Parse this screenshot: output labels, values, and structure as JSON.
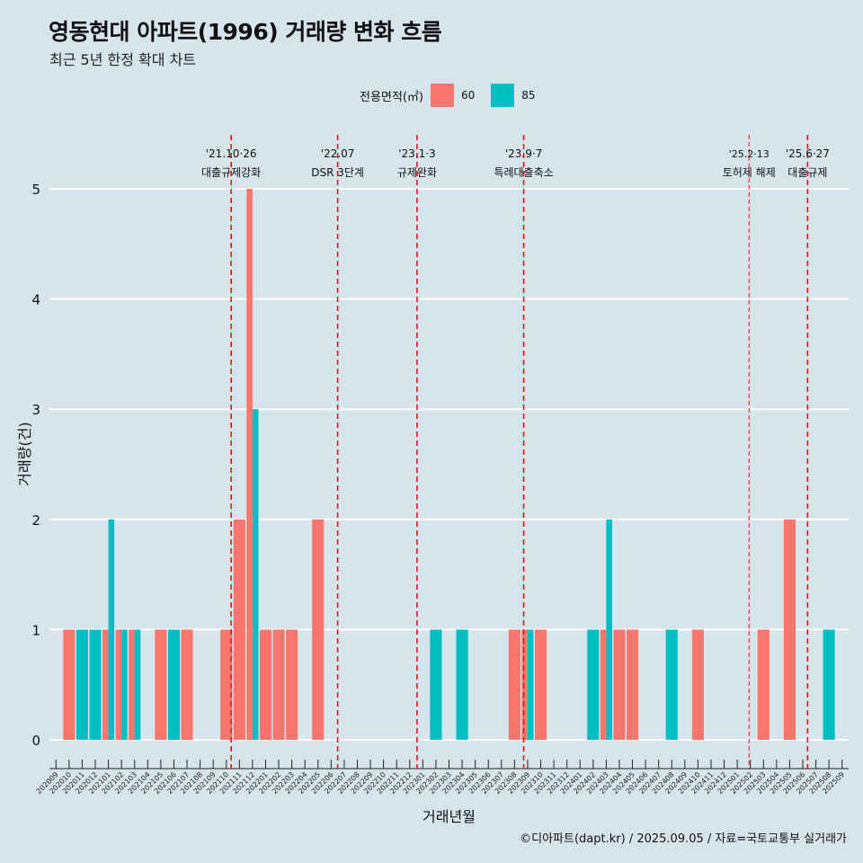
{
  "title": "영동현대 아파트(1996) 거래량 변화 흐름",
  "subtitle": "최근 5년 한정 확대 차트",
  "legend": {
    "title": "전용면적(㎡)",
    "items": [
      {
        "label": "60",
        "color": "#f8766d"
      },
      {
        "label": "85",
        "color": "#00bfc4"
      }
    ]
  },
  "caption": "©디아파트(dapt.kr) / 2025.09.05 / 자료=국토교통부 실거래가",
  "chart_data": {
    "type": "bar",
    "xlabel": "거래년월",
    "ylabel": "거래량(건)",
    "ylim": [
      0,
      5
    ],
    "yticks": [
      0,
      1,
      2,
      3,
      4,
      5
    ],
    "grid": "horizontal",
    "legend_position": "top",
    "categories": [
      "202009",
      "202010",
      "202011",
      "202012",
      "202101",
      "202102",
      "202103",
      "202104",
      "202105",
      "202106",
      "202107",
      "202108",
      "202109",
      "202110",
      "202111",
      "202112",
      "202201",
      "202202",
      "202203",
      "202204",
      "202205",
      "202206",
      "202207",
      "202208",
      "202209",
      "202210",
      "202211",
      "202212",
      "202301",
      "202302",
      "202303",
      "202304",
      "202305",
      "202306",
      "202307",
      "202308",
      "202309",
      "202310",
      "202311",
      "202312",
      "202401",
      "202402",
      "202403",
      "202404",
      "202405",
      "202406",
      "202407",
      "202408",
      "202409",
      "202410",
      "202411",
      "202412",
      "202501",
      "202502",
      "202503",
      "202504",
      "202505",
      "202506",
      "202507",
      "202508",
      "202509"
    ],
    "series": [
      {
        "name": "60",
        "color": "#f8766d",
        "points": [
          [
            "202010",
            1
          ],
          [
            "202101",
            1
          ],
          [
            "202102",
            1
          ],
          [
            "202103",
            1
          ],
          [
            "202105",
            1
          ],
          [
            "202107",
            1
          ],
          [
            "202110",
            1
          ],
          [
            "202111",
            2
          ],
          [
            "202112",
            5
          ],
          [
            "202201",
            1
          ],
          [
            "202202",
            1
          ],
          [
            "202203",
            1
          ],
          [
            "202205",
            2
          ],
          [
            "202308",
            1
          ],
          [
            "202309",
            1
          ],
          [
            "202310",
            1
          ],
          [
            "202403",
            1
          ],
          [
            "202404",
            1
          ],
          [
            "202405",
            1
          ],
          [
            "202410",
            1
          ],
          [
            "202503",
            1
          ],
          [
            "202505",
            2
          ]
        ]
      },
      {
        "name": "85",
        "color": "#00bfc4",
        "points": [
          [
            "202011",
            1
          ],
          [
            "202012",
            1
          ],
          [
            "202101",
            2
          ],
          [
            "202102",
            1
          ],
          [
            "202103",
            1
          ],
          [
            "202106",
            1
          ],
          [
            "202112",
            3
          ],
          [
            "202302",
            1
          ],
          [
            "202304",
            1
          ],
          [
            "202309",
            1
          ],
          [
            "202402",
            1
          ],
          [
            "202403",
            2
          ],
          [
            "202408",
            1
          ],
          [
            "202508",
            1
          ]
        ]
      }
    ],
    "events": [
      {
        "date": "'21.10·26",
        "label": "대출규제강화",
        "month": "202110",
        "offset": 0.87,
        "style": "dashed"
      },
      {
        "date": "'22.07",
        "label": "DSR 3단계",
        "month": "202207",
        "offset": 0.0,
        "style": "dashed"
      },
      {
        "date": "'23.1·3",
        "label": "규제완화",
        "month": "202301",
        "offset": 0.06,
        "style": "dashed"
      },
      {
        "date": "'23.9·7",
        "label": "특례대출축소",
        "month": "202309",
        "offset": 0.2,
        "style": "dashed"
      },
      {
        "date": "'25.2·13",
        "label": "토허제 해제",
        "month": "202502",
        "offset": 0.4,
        "style": "thin-dashed"
      },
      {
        "date": "'25.6·27",
        "label": "대출규제",
        "month": "202506",
        "offset": 0.87,
        "style": "dashed"
      }
    ]
  }
}
